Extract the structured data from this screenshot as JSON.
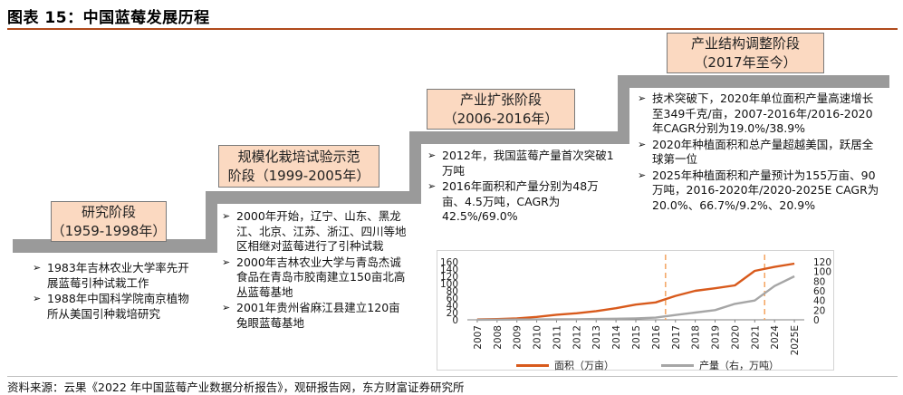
{
  "figure": {
    "title": "图表 15：中国蓝莓发展历程",
    "source": "资料来源：云果《2022 年中国蓝莓产业数据分析报告》，观研报告网，东方财富证券研究所"
  },
  "stages": [
    {
      "name": "研究阶段",
      "period": "（1959-1998年）",
      "bullets": [
        "1983年吉林农业大学率先开展蓝莓引种试栽工作",
        "1988年中国科学院南京植物所从美国引种栽培研究"
      ]
    },
    {
      "name": "规模化栽培试验示范",
      "period": "阶段（1999-2005年）",
      "bullets": [
        "2000年开始，辽宁、山东、黑龙江、北京、江苏、浙江、四川等地区相继对蓝莓进行了引种试栽",
        "2000年吉林农业大学与青岛杰诚食品在青岛市胶南建立150亩北高丛蓝莓基地",
        "2001年贵州省麻江县建立120亩兔眼蓝莓基地"
      ]
    },
    {
      "name": "产业扩张阶段",
      "period": "（2006-2016年）",
      "bullets": [
        "2012年，我国蓝莓产量首次突破1万吨",
        "2016年面积和产量分别为48万亩、4.5万吨，CAGR为42.5%/69.0%"
      ]
    },
    {
      "name": "产业结构调整阶段",
      "period": "（2017年至今）",
      "bullets": [
        "技术突破下，2020年单位面积产量高速增长至349千克/亩，2007-2016年/2016-2020年CAGR分别为19.0%/38.9%",
        "2020年种植面积和总产量超越美国，跃居全球第一位",
        "2025年种植面积和产量预计为155万亩、90万吨，2016-2020年/2020-2025E CAGR为20.0%、66.7%/9.2%、20.9%"
      ]
    }
  ],
  "bullet_icon": "arrow-right-icon",
  "chart_data": {
    "type": "line",
    "x": [
      "2007",
      "2008",
      "2009",
      "2010",
      "2011",
      "2012",
      "2013",
      "2014",
      "2015",
      "2016",
      "2017",
      "2018",
      "2019",
      "2020",
      "2021",
      "2024",
      "2025E"
    ],
    "series": [
      {
        "name": "面积（万亩）",
        "axis": "left",
        "color": "#d85a1c",
        "values": [
          1,
          2,
          4,
          8,
          14,
          18,
          24,
          32,
          42,
          48,
          66,
          80,
          87,
          95,
          135,
          146,
          155
        ]
      },
      {
        "name": "产量（右，万吨）",
        "axis": "right",
        "color": "#a6a6a6",
        "values": [
          0.2,
          0.3,
          0.5,
          0.8,
          1.0,
          1.2,
          1.6,
          2.2,
          3.0,
          4.5,
          10,
          15,
          20,
          33,
          40,
          70,
          90
        ]
      }
    ],
    "y_left": {
      "min": 0,
      "max": 160,
      "ticks": [
        0,
        20,
        40,
        60,
        80,
        100,
        120,
        140,
        160
      ]
    },
    "y_right": {
      "min": 0,
      "max": 120,
      "ticks": [
        0,
        20,
        40,
        60,
        80,
        100,
        120
      ]
    },
    "markers": [
      {
        "between": [
          "2016",
          "2017"
        ],
        "color": "#f4a460",
        "style": "dashed"
      },
      {
        "between": [
          "2021",
          "2024"
        ],
        "color": "#f4a460",
        "style": "dashed"
      }
    ],
    "legend_position": "bottom",
    "grid": false
  }
}
